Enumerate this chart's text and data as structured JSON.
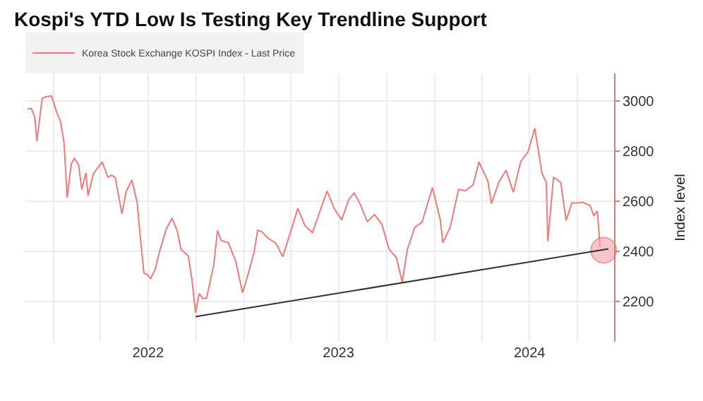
{
  "chart_data": {
    "type": "line",
    "title": "Kospi's YTD Low Is Testing Key Trendline Support",
    "ylabel": "Index level",
    "series": [
      {
        "name": "Korea Stock Exchange KOSPI Index - Last Price",
        "color": "#ef7b7b",
        "x": [
          "2021-11-12",
          "2021-11-19",
          "2021-11-26",
          "2021-11-30",
          "2021-12-10",
          "2021-12-17",
          "2021-12-28",
          "2022-01-07",
          "2022-01-14",
          "2022-01-21",
          "2022-01-27",
          "2022-02-04",
          "2022-02-10",
          "2022-02-18",
          "2022-02-24",
          "2022-03-04",
          "2022-03-08",
          "2022-03-18",
          "2022-03-25",
          "2022-04-04",
          "2022-04-15",
          "2022-04-22",
          "2022-04-29",
          "2022-05-12",
          "2022-05-20",
          "2022-05-31",
          "2022-06-10",
          "2022-06-17",
          "2022-06-23",
          "2022-07-01",
          "2022-07-06",
          "2022-07-15",
          "2022-07-22",
          "2022-08-05",
          "2022-08-16",
          "2022-08-26",
          "2022-09-02",
          "2022-09-16",
          "2022-09-23",
          "2022-09-30",
          "2022-10-07",
          "2022-10-14",
          "2022-10-21",
          "2022-11-04",
          "2022-11-11",
          "2022-11-18",
          "2022-12-02",
          "2022-12-16",
          "2022-12-29",
          "2023-01-06",
          "2023-01-20",
          "2023-01-27",
          "2023-02-03",
          "2023-02-17",
          "2023-03-03",
          "2023-03-16",
          "2023-03-31",
          "2023-04-14",
          "2023-04-28",
          "2023-05-12",
          "2023-05-26",
          "2023-06-09",
          "2023-06-23",
          "2023-07-07",
          "2023-07-21",
          "2023-07-31",
          "2023-08-11",
          "2023-08-25",
          "2023-09-08",
          "2023-09-22",
          "2023-10-06",
          "2023-10-20",
          "2023-10-31",
          "2023-11-10",
          "2023-11-24",
          "2023-12-08",
          "2023-12-28",
          "2024-01-12",
          "2024-01-17",
          "2024-01-31",
          "2024-02-16",
          "2024-02-29",
          "2024-03-15",
          "2024-03-26",
          "2024-04-12",
          "2024-04-19",
          "2024-05-03",
          "2024-05-17",
          "2024-05-31",
          "2024-06-14",
          "2024-06-28",
          "2024-07-11",
          "2024-07-25",
          "2024-08-02",
          "2024-08-05",
          "2024-08-16",
          "2024-08-30",
          "2024-09-09",
          "2024-09-20",
          "2024-09-30",
          "2024-10-11",
          "2024-10-25",
          "2024-11-01",
          "2024-11-08",
          "2024-11-13"
        ],
        "values": [
          2968,
          2971,
          2936,
          2839,
          3010,
          3017,
          3020,
          2954,
          2921,
          2834,
          2614,
          2750,
          2771,
          2744,
          2648,
          2713,
          2622,
          2708,
          2729,
          2757,
          2696,
          2704,
          2695,
          2550,
          2639,
          2685,
          2595,
          2440,
          2314,
          2305,
          2292,
          2330,
          2393,
          2490,
          2533,
          2481,
          2409,
          2382,
          2290,
          2155,
          2232,
          2212,
          2213,
          2348,
          2483,
          2444,
          2434,
          2360,
          2236,
          2289,
          2395,
          2484,
          2480,
          2451,
          2432,
          2379,
          2477,
          2571,
          2501,
          2475,
          2558,
          2641,
          2570,
          2526,
          2609,
          2633,
          2591,
          2519,
          2547,
          2508,
          2408,
          2375,
          2277,
          2409,
          2496,
          2517,
          2655,
          2525,
          2435,
          2497,
          2648,
          2642,
          2666,
          2757,
          2681,
          2591,
          2676,
          2724,
          2636,
          2758,
          2797,
          2891,
          2710,
          2676,
          2441,
          2697,
          2674,
          2523,
          2593,
          2593,
          2596,
          2583,
          2542,
          2561,
          2418
        ]
      },
      {
        "type": "scatter",
        "color": "#f4a0aa",
        "marker": "circle",
        "x": [
          "2024-11-20"
        ],
        "values": [
          2405
        ]
      },
      {
        "type": "line",
        "color": "#333333",
        "line_style": "solid",
        "x": [
          "2022-09-30",
          "2024-11-29"
        ],
        "values": [
          2140,
          2410
        ]
      }
    ],
    "xlim": [
      "2021-11-08",
      "2024-12-10"
    ],
    "xticks": [
      {
        "value": "2022-01-01",
        "label": null
      },
      {
        "value": "2022-04-01",
        "label": null
      },
      {
        "value": "2022-07-01",
        "label": "2022"
      },
      {
        "value": "2022-10-01",
        "label": null
      },
      {
        "value": "2023-01-01",
        "label": null
      },
      {
        "value": "2023-04-01",
        "label": null
      },
      {
        "value": "2023-07-01",
        "label": "2023"
      },
      {
        "value": "2023-10-01",
        "label": null
      },
      {
        "value": "2024-01-01",
        "label": null
      },
      {
        "value": "2024-04-01",
        "label": null
      },
      {
        "value": "2024-07-01",
        "label": "2024"
      },
      {
        "value": "2024-10-01",
        "label": null
      }
    ],
    "ylim": [
      2040,
      3110
    ],
    "yticks": [
      2200,
      2400,
      2600,
      2800,
      3000
    ],
    "grid": true,
    "legend": "top left"
  }
}
